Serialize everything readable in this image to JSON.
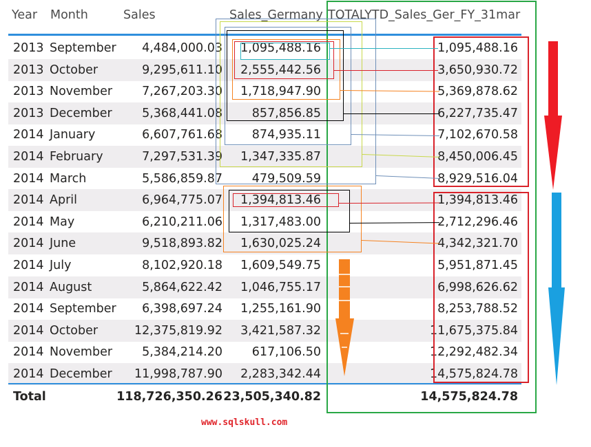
{
  "table": {
    "headers": {
      "year": "Year",
      "month": "Month",
      "sales": "Sales",
      "sales_germany": "Sales_Germany",
      "totalytd": "TOTALYTD_Sales_Ger_FY_31mar"
    },
    "rows": [
      {
        "year": "2013",
        "month": "September",
        "sales": "4,484,000.03",
        "sales_germany": "1,095,488.16",
        "totalytd": "1,095,488.16"
      },
      {
        "year": "2013",
        "month": "October",
        "sales": "9,295,611.10",
        "sales_germany": "2,555,442.56",
        "totalytd": "3,650,930.72"
      },
      {
        "year": "2013",
        "month": "November",
        "sales": "7,267,203.30",
        "sales_germany": "1,718,947.90",
        "totalytd": "5,369,878.62"
      },
      {
        "year": "2013",
        "month": "December",
        "sales": "5,368,441.08",
        "sales_germany": "857,856.85",
        "totalytd": "6,227,735.47"
      },
      {
        "year": "2014",
        "month": "January",
        "sales": "6,607,761.68",
        "sales_germany": "874,935.11",
        "totalytd": "7,102,670.58"
      },
      {
        "year": "2014",
        "month": "February",
        "sales": "7,297,531.39",
        "sales_germany": "1,347,335.87",
        "totalytd": "8,450,006.45"
      },
      {
        "year": "2014",
        "month": "March",
        "sales": "5,586,859.87",
        "sales_germany": "479,509.59",
        "totalytd": "8,929,516.04"
      },
      {
        "year": "2014",
        "month": "April",
        "sales": "6,964,775.07",
        "sales_germany": "1,394,813.46",
        "totalytd": "1,394,813.46"
      },
      {
        "year": "2014",
        "month": "May",
        "sales": "6,210,211.06",
        "sales_germany": "1,317,483.00",
        "totalytd": "2,712,296.46"
      },
      {
        "year": "2014",
        "month": "June",
        "sales": "9,518,893.82",
        "sales_germany": "1,630,025.24",
        "totalytd": "4,342,321.70"
      },
      {
        "year": "2014",
        "month": "July",
        "sales": "8,102,920.18",
        "sales_germany": "1,609,549.75",
        "totalytd": "5,951,871.45"
      },
      {
        "year": "2014",
        "month": "August",
        "sales": "5,864,622.42",
        "sales_germany": "1,046,755.17",
        "totalytd": "6,998,626.62"
      },
      {
        "year": "2014",
        "month": "September",
        "sales": "6,398,697.24",
        "sales_germany": "1,255,161.90",
        "totalytd": "8,253,788.52"
      },
      {
        "year": "2014",
        "month": "October",
        "sales": "12,375,819.92",
        "sales_germany": "3,421,587.32",
        "totalytd": "11,675,375.84"
      },
      {
        "year": "2014",
        "month": "November",
        "sales": "5,384,214.20",
        "sales_germany": "617,106.50",
        "totalytd": "12,292,482.34"
      },
      {
        "year": "2014",
        "month": "December",
        "sales": "11,998,787.90",
        "sales_germany": "2,283,342.44",
        "totalytd": "14,575,824.78"
      }
    ],
    "total": {
      "label": "Total",
      "sales": "118,726,350.26",
      "sales_germany": "23,505,340.82",
      "totalytd": "14,575,824.78"
    }
  },
  "annotations": {
    "colors": {
      "red": "#d9222a",
      "blue": "#1aa0e0",
      "orange": "#f58220",
      "green": "#28a745",
      "black": "#000000",
      "yellow_green": "#c8d84a",
      "steel_blue": "#6e8fb8",
      "teal": "#2bb3c0"
    },
    "arrows": [
      "red-down-arrow",
      "blue-down-arrow",
      "orange-down-arrow"
    ]
  },
  "footer": {
    "watermark": "www.sqlskull.com"
  }
}
